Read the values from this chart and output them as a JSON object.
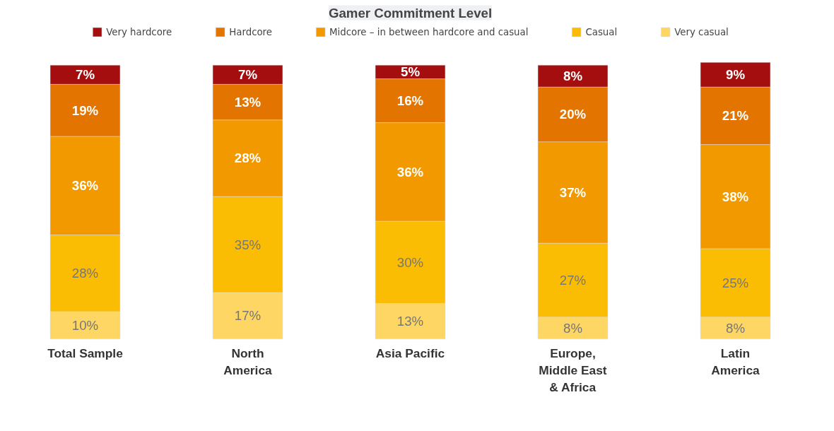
{
  "chart_data": {
    "type": "bar",
    "title": "Gamer Commitment Level",
    "stacked": true,
    "legend": "top",
    "categories": [
      "Total Sample",
      "North America",
      "Asia Pacific",
      "Europe, Middle East & Africa",
      "Latin America"
    ],
    "series": [
      {
        "name": "Very casual",
        "color": "#fdd663",
        "values": [
          10,
          17,
          13,
          8,
          8
        ],
        "value_labels": [
          "10%",
          "17%",
          "13%",
          "8%",
          "8%"
        ]
      },
      {
        "name": "Casual",
        "color": "#fbbc04",
        "values": [
          28,
          35,
          30,
          27,
          25
        ],
        "value_labels": [
          "28%",
          "35%",
          "30%",
          "27%",
          "25%"
        ]
      },
      {
        "name": "Midcore – in between hardcore and casual",
        "color": "#f29900",
        "values": [
          36,
          28,
          36,
          37,
          38
        ],
        "value_labels": [
          "36%",
          "28%",
          "36%",
          "37%",
          "38%"
        ]
      },
      {
        "name": "Hardcore",
        "color": "#e37400",
        "values": [
          19,
          13,
          16,
          20,
          21
        ],
        "value_labels": [
          "19%",
          "13%",
          "16%",
          "20%",
          "21%"
        ]
      },
      {
        "name": "Very hardcore",
        "color": "#a50e0e",
        "values": [
          7,
          7,
          5,
          8,
          9
        ],
        "value_labels": [
          "7%",
          "7%",
          "5%",
          "8%",
          "9%"
        ]
      }
    ]
  }
}
